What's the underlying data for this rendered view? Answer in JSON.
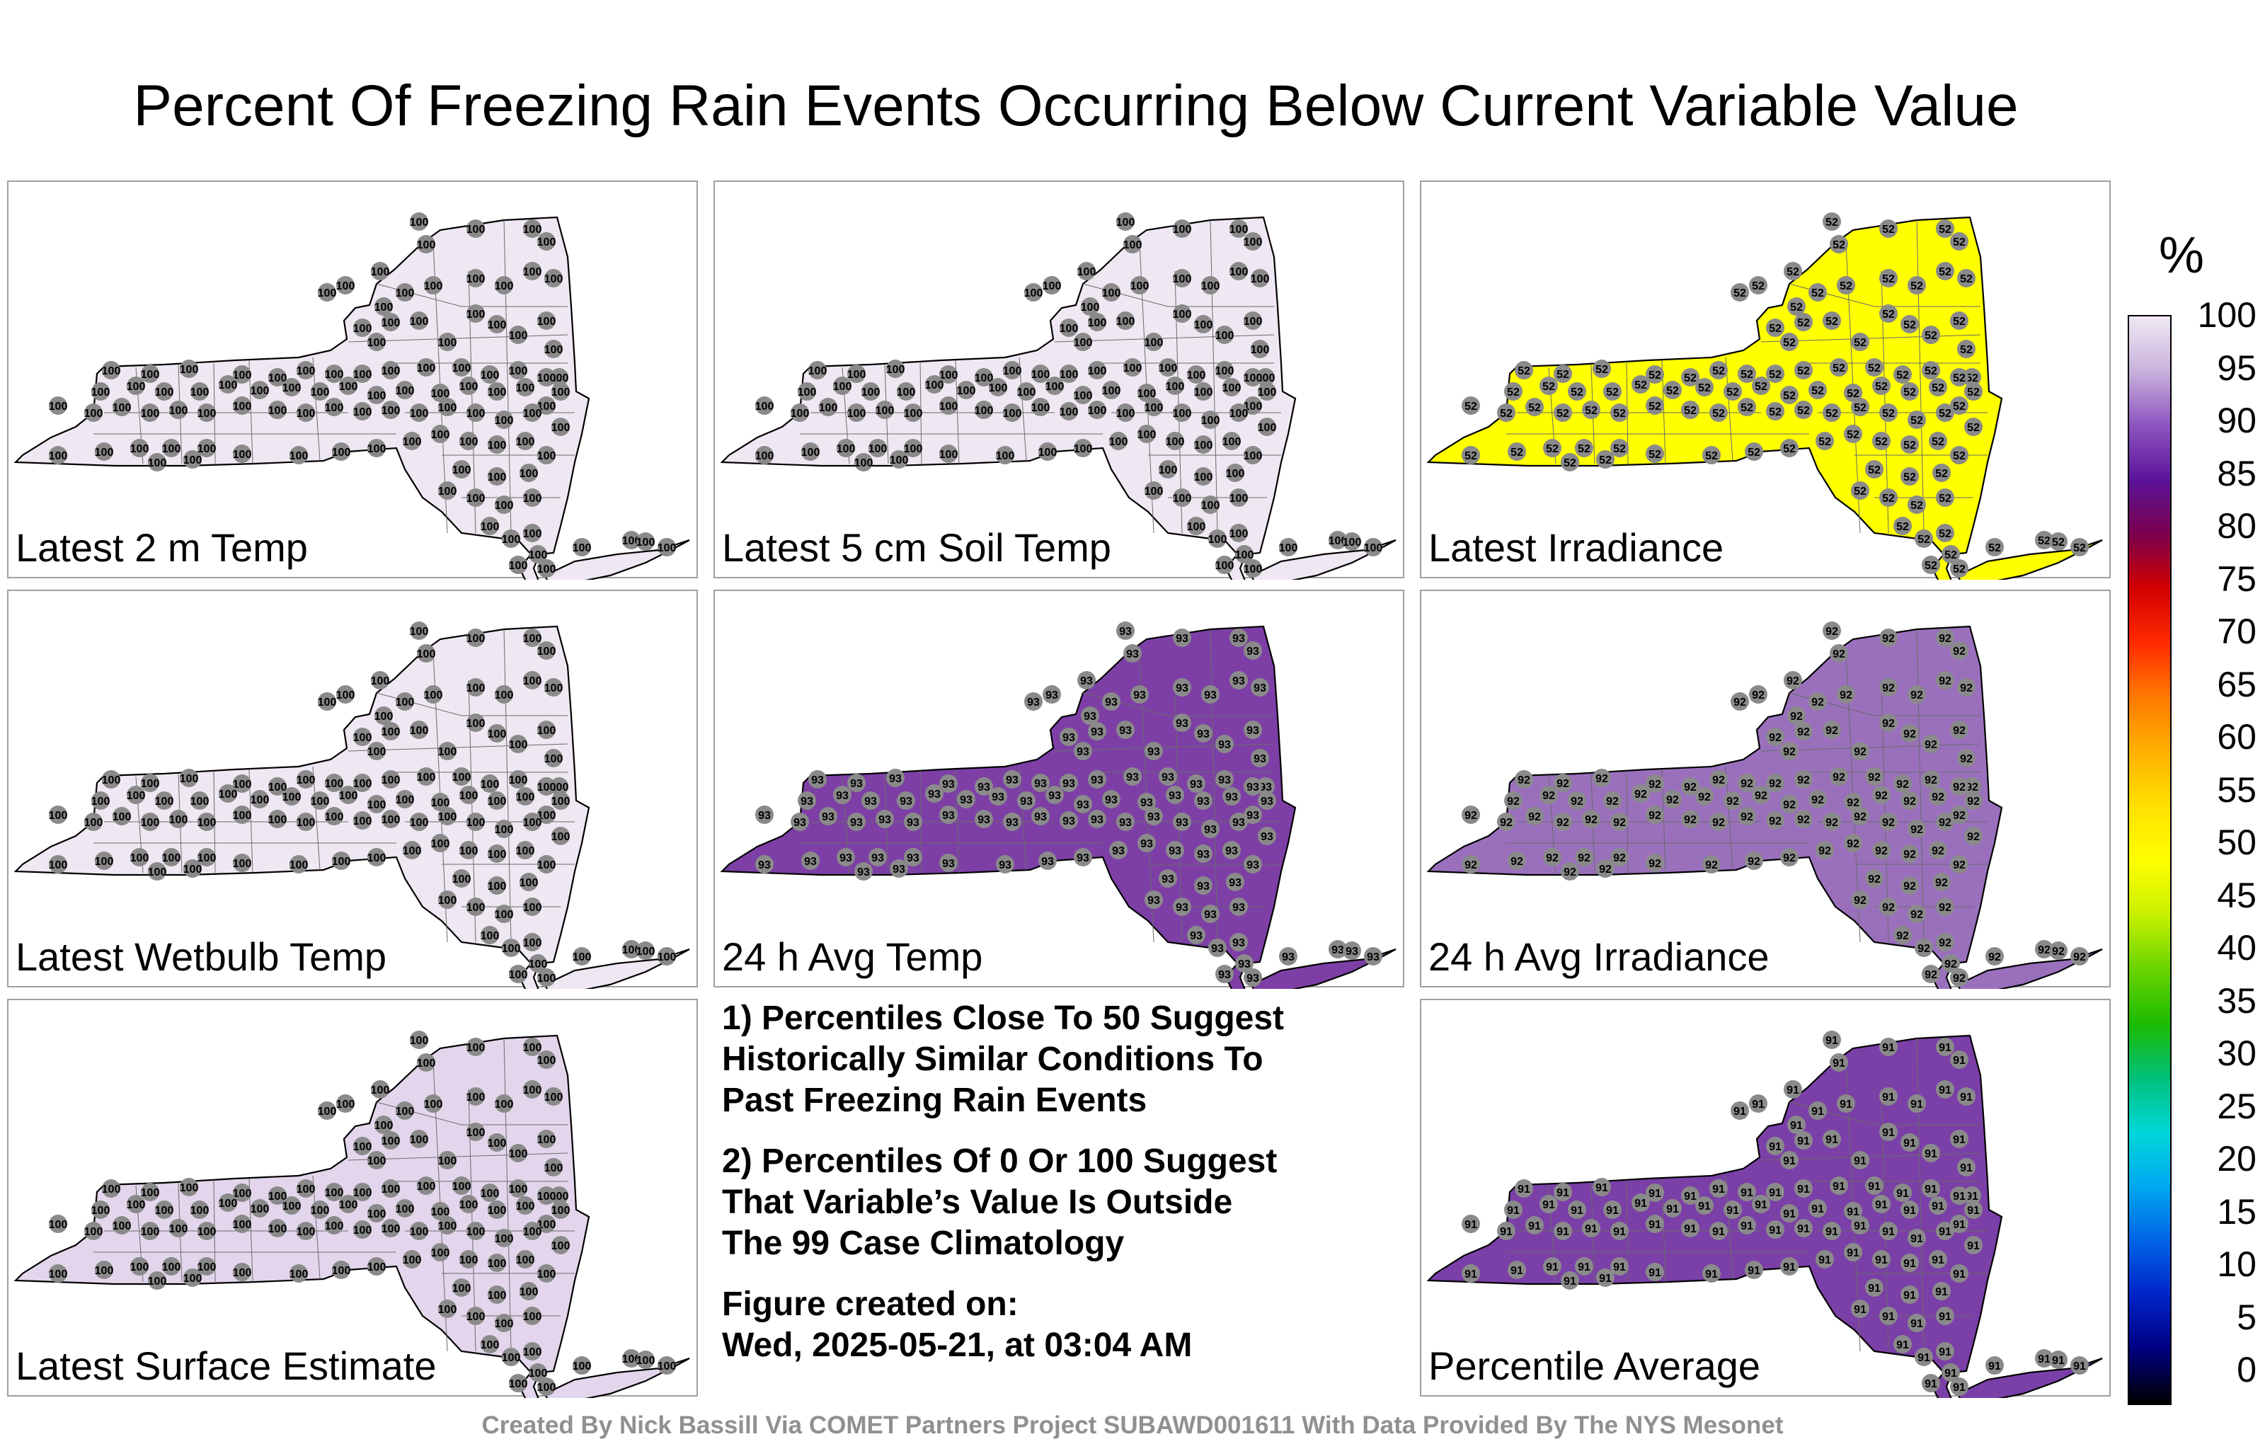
{
  "title": "Percent Of Freezing Rain Events Occurring Below Current Variable Value",
  "panels": [
    {
      "label": "Latest 2 m Temp",
      "fill": "#efe8f2",
      "value": "100"
    },
    {
      "label": "Latest 5 cm Soil Temp",
      "fill": "#efe8f2",
      "value": "100"
    },
    {
      "label": "Latest Irradiance",
      "fill": "#ffff00",
      "value": "52"
    },
    {
      "label": "Latest Wetbulb Temp",
      "fill": "#efe8f2",
      "value": "100"
    },
    {
      "label": "24 h Avg Temp",
      "fill": "#7d3fa6",
      "value": "93"
    },
    {
      "label": "24 h Avg Irradiance",
      "fill": "#9a70bd",
      "value": "92"
    },
    {
      "label": "Latest Surface Estimate",
      "fill": "#e3d6ec",
      "value": "100"
    },
    {
      "label": "Percentile Average",
      "fill": "#7b3fa8",
      "value": "91"
    }
  ],
  "notes": {
    "n1": [
      "1) Percentiles Close To 50 Suggest",
      "Historically Similar Conditions To",
      "Past Freezing Rain Events"
    ],
    "n2": [
      "2) Percentiles Of 0 Or 100 Suggest",
      "That Variable’s Value Is Outside",
      "The 99 Case Climatology"
    ],
    "n3": [
      "Figure created on:",
      "Wed, 2025-05-21, at 03:04 AM"
    ]
  },
  "colorbar": {
    "unit": "%",
    "ticks": [
      "100",
      "95",
      "90",
      "85",
      "80",
      "75",
      "70",
      "65",
      "60",
      "55",
      "50",
      "45",
      "40",
      "35",
      "30",
      "25",
      "20",
      "15",
      "10",
      "5",
      "0"
    ]
  },
  "footer": "Created By Nick Bassill Via COMET Partners Project SUBAWD001611 With Data Provided By The NYS Mesonet"
}
